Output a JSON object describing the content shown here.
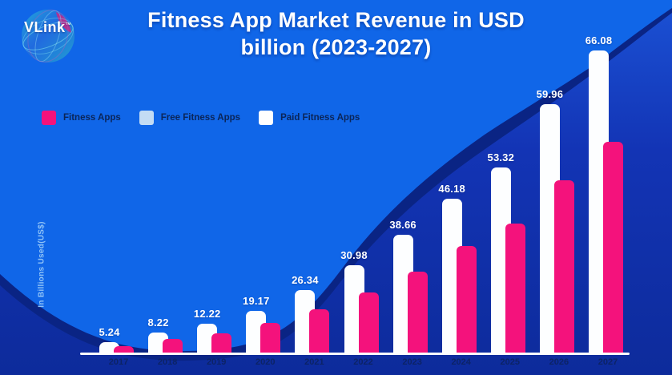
{
  "logo": {
    "text": "VLink",
    "trademark": "™"
  },
  "title": {
    "line1": "Fitness App Market Revenue in USD",
    "line2": "billion (2023-2027)"
  },
  "legend": [
    {
      "label": "Fitness Apps",
      "color": "#F4127C"
    },
    {
      "label": "Free Fitness Apps",
      "color": "#C3DCF4"
    },
    {
      "label": "Paid Fitness Apps",
      "color": "#FFFFFF"
    }
  ],
  "y_axis_label": "In Billions Used(US$)",
  "chart_data": {
    "type": "bar",
    "title": "Fitness App Market Revenue in USD billion (2023-2027)",
    "categories": [
      "2017",
      "2018",
      "2019",
      "2020",
      "2021",
      "2022",
      "2023",
      "2024",
      "2025",
      "2026",
      "2027"
    ],
    "series": [
      {
        "name": "Paid Fitness Apps",
        "color": "#FFFFFF",
        "values": [
          5.24,
          8.22,
          12.22,
          19.17,
          26.34,
          30.98,
          38.66,
          46.18,
          53.32,
          59.96,
          66.08
        ],
        "value_labels": [
          "5.24",
          "8.22",
          "12.22",
          "19.17",
          "26.34",
          "30.98",
          "38.66",
          "46.18",
          "53.32",
          "59.96",
          "66.08"
        ],
        "labels_visible": true
      },
      {
        "name": "Fitness Apps",
        "color": "#F4127C",
        "values_estimated": [
          3.6,
          5.7,
          8.3,
          13.7,
          18.4,
          21.4,
          26.9,
          32.1,
          37.2,
          41.6,
          46.2
        ],
        "labels_visible": false
      }
    ],
    "xlabel": "",
    "ylabel": "In Billions Used(US$)",
    "legend_position": "top-left",
    "grid": false,
    "note": "bar heights are decorative / not to a strict linear scale"
  },
  "colors": {
    "background_bright": "#1066E8",
    "wave_royal": "#1334B5",
    "wave_navy": "#0A2484",
    "accent_pink": "#F4127C",
    "legend_blue_swatch": "#C3DCF4",
    "axis_line": "#FFFFFF",
    "year_text": "#0C2366",
    "legend_text": "#0B2558",
    "yaxis_text": "#8FC3F7",
    "title_text": "#FFFFFF"
  }
}
